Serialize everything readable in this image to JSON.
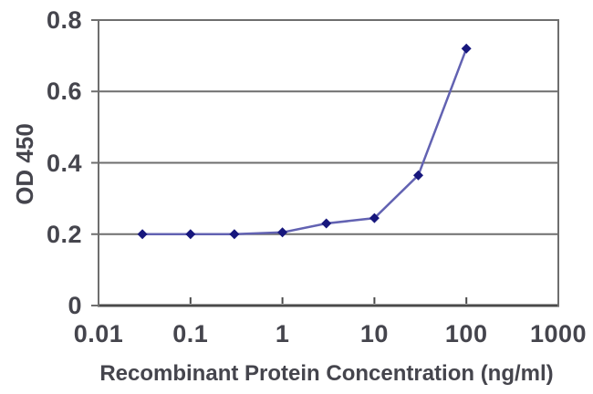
{
  "chart_data": {
    "type": "line",
    "title": "",
    "xlabel": "Recombinant Protein Concentration (ng/ml)",
    "ylabel": "OD 450",
    "x_scale": "log",
    "xlim": [
      0.01,
      1000
    ],
    "ylim": [
      0,
      0.8
    ],
    "xticks": {
      "values": [
        0.01,
        0.1,
        1,
        10,
        100,
        1000
      ],
      "labels": [
        "0.01",
        "0.1",
        "1",
        "10",
        "100",
        "1000"
      ]
    },
    "yticks": {
      "values": [
        0,
        0.2,
        0.4,
        0.6,
        0.8
      ],
      "labels": [
        "0",
        "0.2",
        "0.4",
        "0.6",
        "0.8"
      ]
    },
    "grid": "horizontal",
    "legend": "none",
    "marker": "diamond",
    "series": [
      {
        "name": "OD 450 vs concentration",
        "x": [
          0.03,
          0.1,
          0.3,
          1,
          3,
          10,
          30,
          100
        ],
        "y": [
          0.2,
          0.2,
          0.2,
          0.205,
          0.23,
          0.245,
          0.365,
          0.72
        ]
      }
    ],
    "colors": {
      "line": "#6262b2",
      "marker": "#17177d",
      "grid": "#6e6e6e",
      "axis": "#4a4a4a",
      "text": "#45454d",
      "background": "#ffffff"
    }
  }
}
